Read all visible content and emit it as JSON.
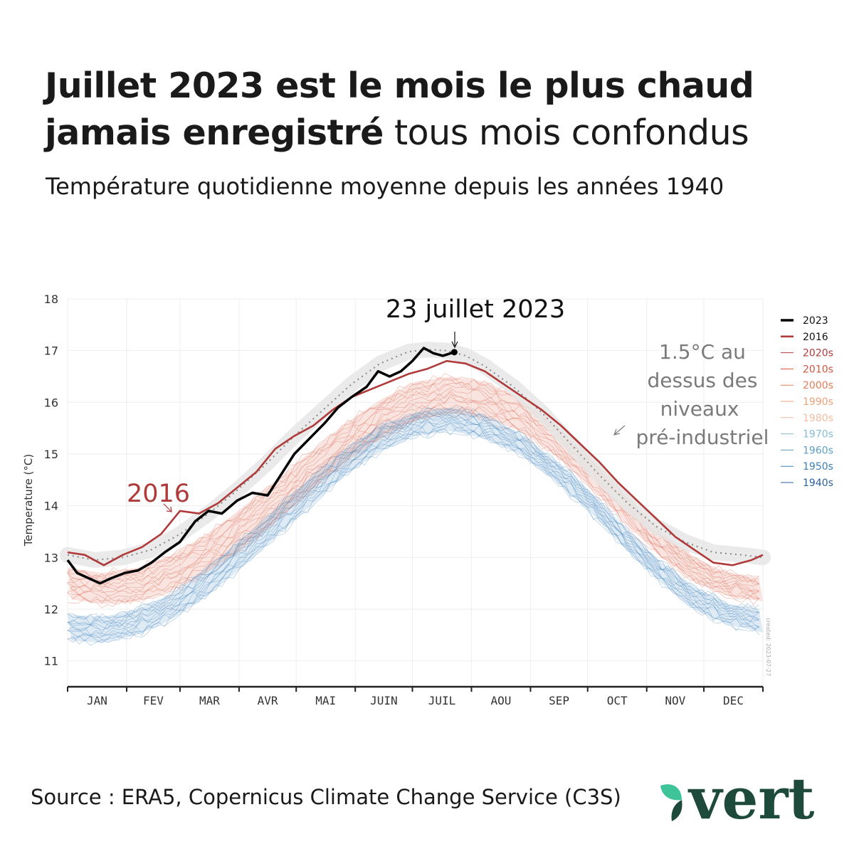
{
  "header": {
    "title_bold_1": "Juillet 2023 est le mois le plus chaud",
    "title_bold_2": "jamais enregistré",
    "title_normal_2": " tous mois confondus",
    "subtitle": "Température quotidienne moyenne depuis les années 1940"
  },
  "footer": {
    "source": "Source : ERA5, Copernicus Climate Change Service (C3S)",
    "logo_text": "vert"
  },
  "colors": {
    "y2023": "#000000",
    "y2016": "#b03a3a",
    "band": "#e6e6e6",
    "preindustrial_line": "#888888",
    "logo": "#1d4a3a",
    "leaf_light": "#3fc49a",
    "leaf_dark": "#1d4a3a"
  },
  "chart_data": {
    "type": "line",
    "ylabel": "Temperature (°C)",
    "ylim": [
      10.5,
      18
    ],
    "yticks": [
      11,
      12,
      13,
      14,
      15,
      16,
      17,
      18
    ],
    "xlim": [
      1,
      366
    ],
    "grid": true,
    "months": [
      "JAN",
      "FEV",
      "MAR",
      "AVR",
      "MAI",
      "JUIN",
      "JUIL",
      "AOU",
      "SEP",
      "OCT",
      "NOV",
      "DEC"
    ],
    "legend": {
      "placement": "right",
      "entries": [
        {
          "label": "2023",
          "color": "#000000"
        },
        {
          "label": "2016",
          "color": "#b03a3a"
        },
        {
          "label": "2020s",
          "color": "#b23b3b"
        },
        {
          "label": "2010s",
          "color": "#d2553e"
        },
        {
          "label": "2000s",
          "color": "#e47d58"
        },
        {
          "label": "1990s",
          "color": "#eea078"
        },
        {
          "label": "1980s",
          "color": "#f2bd9e"
        },
        {
          "label": "1970s",
          "color": "#86bcd8"
        },
        {
          "label": "1960s",
          "color": "#5d9dc8"
        },
        {
          "label": "1950s",
          "color": "#3d7fb6"
        },
        {
          "label": "1940s",
          "color": "#2b62a0"
        }
      ]
    },
    "annotations": {
      "peak_label": "23 juillet 2023",
      "label_2016": "2016",
      "preindustrial_lines": [
        "1.5°C au",
        "dessus des",
        "niveaux",
        "pré-industriel"
      ],
      "side_note": "created: 2023-07-27"
    },
    "series": [
      {
        "name": "2023",
        "x": [
          1,
          6,
          12,
          18,
          24,
          31,
          38,
          45,
          52,
          60,
          68,
          75,
          82,
          90,
          98,
          106,
          113,
          120,
          128,
          136,
          143,
          150,
          158,
          164,
          170,
          176,
          182,
          188,
          193,
          198,
          204
        ],
        "y": [
          12.95,
          12.7,
          12.6,
          12.5,
          12.6,
          12.7,
          12.75,
          12.9,
          13.1,
          13.3,
          13.7,
          13.9,
          13.85,
          14.1,
          14.25,
          14.2,
          14.6,
          15.0,
          15.3,
          15.6,
          15.9,
          16.1,
          16.3,
          16.6,
          16.5,
          16.6,
          16.8,
          17.05,
          16.95,
          16.9,
          16.97
        ]
      },
      {
        "name": "2016",
        "x": [
          1,
          10,
          20,
          30,
          40,
          50,
          60,
          70,
          80,
          90,
          100,
          110,
          120,
          130,
          140,
          150,
          160,
          170,
          180,
          190,
          200,
          210,
          220,
          230,
          240,
          250,
          260,
          270,
          280,
          290,
          300,
          310,
          320,
          330,
          340,
          350,
          360,
          366
        ],
        "y": [
          13.1,
          13.05,
          12.85,
          13.05,
          13.2,
          13.45,
          13.9,
          13.85,
          14.05,
          14.35,
          14.65,
          15.1,
          15.35,
          15.55,
          15.85,
          16.1,
          16.25,
          16.4,
          16.55,
          16.65,
          16.8,
          16.75,
          16.6,
          16.35,
          16.1,
          15.85,
          15.55,
          15.2,
          14.85,
          14.45,
          14.1,
          13.75,
          13.4,
          13.15,
          12.9,
          12.85,
          12.95,
          13.05
        ]
      },
      {
        "name": "1.5°C au dessus des niveaux pré-industriel",
        "x": [
          1,
          15,
          30,
          45,
          60,
          75,
          90,
          105,
          120,
          135,
          150,
          165,
          180,
          190,
          200,
          210,
          220,
          235,
          250,
          265,
          280,
          295,
          310,
          325,
          340,
          355,
          366
        ],
        "y": [
          13.05,
          12.95,
          13.0,
          13.15,
          13.45,
          13.85,
          14.3,
          14.8,
          15.35,
          15.85,
          16.35,
          16.75,
          16.98,
          17.02,
          17.0,
          16.9,
          16.7,
          16.3,
          15.8,
          15.2,
          14.6,
          14.05,
          13.6,
          13.3,
          13.1,
          13.05,
          13.0
        ]
      }
    ],
    "decade_bands": [
      {
        "name": "2010s–2020s",
        "color": "#e06a55",
        "low": [
          12.2,
          12.1,
          12.15,
          12.35,
          12.7,
          13.15,
          13.7,
          14.3,
          14.85,
          15.3,
          15.65,
          15.8,
          15.7,
          15.45,
          15.0,
          14.4,
          13.7,
          13.05,
          12.55,
          12.25,
          12.15
        ],
        "high": [
          12.8,
          12.7,
          12.8,
          13.05,
          13.45,
          13.95,
          14.5,
          15.05,
          15.6,
          16.05,
          16.4,
          16.5,
          16.4,
          16.1,
          15.6,
          14.95,
          14.25,
          13.55,
          13.0,
          12.7,
          12.6
        ]
      },
      {
        "name": "1940s–1970s",
        "color": "#4a8ac0",
        "low": [
          11.4,
          11.35,
          11.5,
          11.8,
          12.25,
          12.8,
          13.4,
          14.0,
          14.6,
          15.05,
          15.35,
          15.45,
          15.3,
          15.0,
          14.5,
          13.9,
          13.2,
          12.55,
          12.0,
          11.7,
          11.55
        ],
        "high": [
          11.9,
          11.85,
          12.0,
          12.3,
          12.8,
          13.35,
          13.95,
          14.55,
          15.1,
          15.55,
          15.8,
          15.9,
          15.75,
          15.4,
          14.9,
          14.3,
          13.6,
          12.95,
          12.45,
          12.1,
          12.0
        ]
      }
    ]
  }
}
